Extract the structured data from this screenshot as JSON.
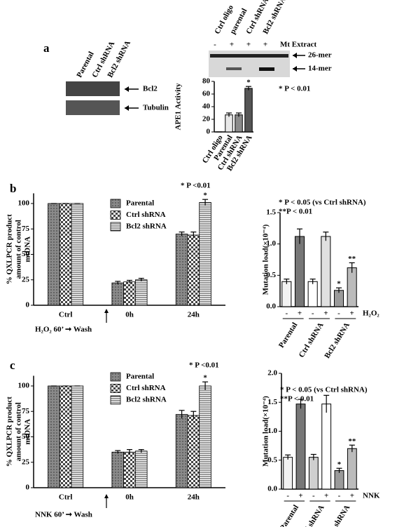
{
  "figure": {
    "panels": [
      "a",
      "b",
      "c"
    ],
    "blot": {
      "lanes": [
        "Parental",
        "Ctrl shRNA",
        "Bcl2 shRNA"
      ],
      "bands": [
        "Bcl2",
        "Tubulin"
      ]
    },
    "gel": {
      "lanes": [
        "Ctrl oligo",
        "parental",
        "Ctrl shRNA",
        "Bcl2 shRNA"
      ],
      "signs": [
        "-",
        "+",
        "+",
        "+"
      ],
      "extract": "Mt Extract",
      "bands": [
        "26-mer",
        "14-mer"
      ]
    }
  },
  "chart_data": [
    {
      "type": "bar",
      "ylabel": [
        "APE1 Activity"
      ],
      "categories": [
        "Ctrl oligo",
        "Parental",
        "Ctrl shRNA",
        "Bcl2 shRNA"
      ],
      "values": [
        0,
        27,
        27,
        69
      ],
      "errors": [
        0,
        3,
        3,
        3
      ],
      "colors": [
        "#ffffff",
        "#e8e8e8",
        "#8a8a8a",
        "#555555"
      ],
      "stars": [
        null,
        null,
        null,
        "*"
      ],
      "ylim": [
        0,
        80
      ],
      "yticks": [
        0,
        20,
        40,
        60,
        80
      ],
      "annotations": [
        "* P < 0.01"
      ]
    },
    {
      "type": "grouped-bar",
      "ylabel": [
        "% QXLPCR product",
        "amount of control",
        "mtDNA"
      ],
      "categories": [
        "Ctrl",
        "0h",
        "24h"
      ],
      "series": [
        {
          "name": "Parental",
          "color": "#8a8a8a",
          "values": [
            100,
            22,
            70
          ],
          "errors": [
            0,
            1.5,
            2
          ]
        },
        {
          "name": "Ctrl shRNA",
          "color": "#dddddd",
          "values": [
            100,
            23,
            69
          ],
          "errors": [
            0,
            1.5,
            3
          ]
        },
        {
          "name": "Bcl2 shRNA",
          "color": "#ffffff",
          "values": [
            100,
            25,
            101
          ],
          "errors": [
            0,
            1.5,
            3
          ],
          "stars": [
            null,
            null,
            "*"
          ]
        }
      ],
      "ylim": [
        0,
        110
      ],
      "yticks": [
        0,
        25,
        50,
        75,
        100
      ],
      "annotations": [
        "* P <0.01"
      ],
      "x_note": "H₂O₂ 60’ ➞ Wash"
    },
    {
      "type": "bar",
      "ylabel": [
        "Mutation load(×10⁻⁴)"
      ],
      "categories": [
        "-",
        "+",
        "-",
        "+",
        "-",
        "+"
      ],
      "groups": [
        "Parental",
        "Ctrl shRNA",
        "Bcl2 shRNA"
      ],
      "factor": "H₂O₂",
      "values": [
        0.4,
        1.12,
        0.4,
        1.12,
        0.26,
        0.62
      ],
      "errors": [
        0.04,
        0.12,
        0.04,
        0.07,
        0.04,
        0.08
      ],
      "colors": [
        "#f2f2f2",
        "#777777",
        "#ffffff",
        "#e0e0e0",
        "#9a9a9a",
        "#bbbbbb"
      ],
      "stars": [
        null,
        null,
        null,
        null,
        "*",
        "**"
      ],
      "ylim": [
        0,
        1.5
      ],
      "yticks": [
        {
          "value": 0,
          "label": "0.0"
        },
        0.5,
        {
          "value": 1,
          "label": "1.0"
        },
        1.5
      ],
      "annotations": [
        "* P < 0.05 (vs Ctrl shRNA)",
        "**P < 0.01"
      ]
    },
    {
      "type": "grouped-bar",
      "ylabel": [
        "% QXLPCR product",
        "amount of control",
        "mtDNA"
      ],
      "categories": [
        "Ctrl",
        "0h",
        "24h"
      ],
      "series": [
        {
          "name": "Parental",
          "color": "#8a8a8a",
          "values": [
            100,
            35,
            72
          ],
          "errors": [
            0,
            1.5,
            4
          ]
        },
        {
          "name": "Ctrl shRNA",
          "color": "#dddddd",
          "values": [
            100,
            35,
            71
          ],
          "errors": [
            0,
            2.5,
            4
          ]
        },
        {
          "name": "Bcl2 shRNA",
          "color": "#ffffff",
          "values": [
            100,
            36,
            100
          ],
          "errors": [
            0,
            1.5,
            4
          ],
          "stars": [
            null,
            null,
            "*"
          ]
        }
      ],
      "ylim": [
        0,
        110
      ],
      "yticks": [
        0,
        25,
        50,
        75,
        100
      ],
      "annotations": [
        "* P <0.01"
      ],
      "x_note": "NNK 60’ ➞ Wash"
    },
    {
      "type": "bar",
      "ylabel": [
        "Mutation load(×10⁻⁴)"
      ],
      "categories": [
        "-",
        "+",
        "-",
        "+",
        "-",
        "+"
      ],
      "groups": [
        "Parental",
        "Ctrl shRNA",
        "Bcl2 shRNA"
      ],
      "factor": "NNK",
      "values": [
        0.55,
        1.47,
        0.55,
        1.47,
        0.32,
        0.7
      ],
      "errors": [
        0.04,
        0.08,
        0.05,
        0.15,
        0.04,
        0.06
      ],
      "colors": [
        "#f2f2f2",
        "#777777",
        "#cfcfcf",
        "#ffffff",
        "#9a9a9a",
        "#bbbbbb"
      ],
      "stars": [
        null,
        null,
        null,
        null,
        "*",
        "**"
      ],
      "ylim": [
        0,
        2
      ],
      "yticks": [
        {
          "value": 0,
          "label": "0.0"
        },
        0.5,
        {
          "value": 1,
          "label": "1.0"
        },
        1.5,
        {
          "value": 2,
          "label": "2.0"
        }
      ],
      "annotations": [
        "* P < 0.05 (vs Ctrl shRNA)",
        "**P < 0.01"
      ]
    }
  ]
}
